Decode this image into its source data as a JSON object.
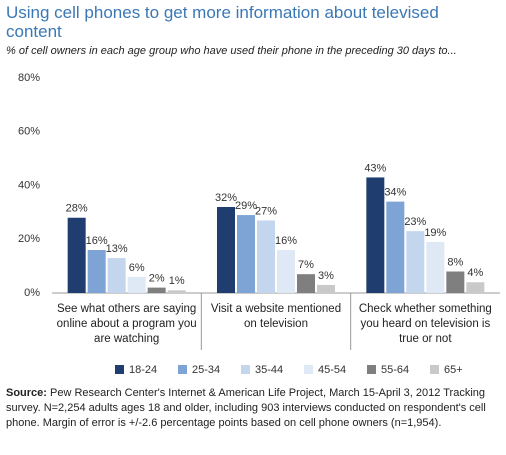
{
  "chart_data": {
    "type": "bar",
    "title": "Using cell phones to get more information about televised content",
    "subtitle": "% of cell owners in each age group who have used their phone in the preceding 30 days to...",
    "categories": [
      "See what others are saying online about a program you are watching",
      "Visit a website mentioned on television",
      "Check whether something you heard on television is true or not"
    ],
    "series": [
      {
        "name": "18-24",
        "color": "#1f3d6e",
        "values": [
          28,
          32,
          43
        ],
        "value_labels": [
          "28%",
          "32%",
          "43%"
        ]
      },
      {
        "name": "25-34",
        "color": "#7ea4d6",
        "values": [
          16,
          29,
          34
        ],
        "value_labels": [
          "16%",
          "29%",
          "34%"
        ]
      },
      {
        "name": "35-44",
        "color": "#c3d6ed",
        "values": [
          13,
          27,
          23
        ],
        "value_labels": [
          "13%",
          "27%",
          "23%"
        ]
      },
      {
        "name": "45-54",
        "color": "#dfe9f5",
        "values": [
          6,
          16,
          19
        ],
        "value_labels": [
          "6%",
          "16%",
          "19%"
        ]
      },
      {
        "name": "55-64",
        "color": "#7f7f7f",
        "values": [
          2,
          7,
          8
        ],
        "value_labels": [
          "2%",
          "7%",
          "8%"
        ]
      },
      {
        "name": "65+",
        "color": "#c9c9c9",
        "values": [
          1,
          3,
          4
        ],
        "value_labels": [
          "1%",
          "3%",
          "4%"
        ]
      }
    ],
    "ylim": [
      0,
      80
    ],
    "yticks": [
      {
        "value": 0,
        "label": "0%"
      },
      {
        "value": 20,
        "label": "20%"
      },
      {
        "value": 40,
        "label": "40%"
      },
      {
        "value": 60,
        "label": "60%"
      },
      {
        "value": 80,
        "label": "80%"
      }
    ],
    "grid": false,
    "legend": "bottom",
    "source_label": "Source:",
    "source_text": "Pew Research Center's Internet & American Life Project, March 15-April 3, 2012 Tracking survey. N=2,254 adults ages 18 and older, including 903 interviews conducted on respondent's cell phone. Margin of error is +/-2.6 percentage points based on cell phone owners (n=1,954)."
  }
}
